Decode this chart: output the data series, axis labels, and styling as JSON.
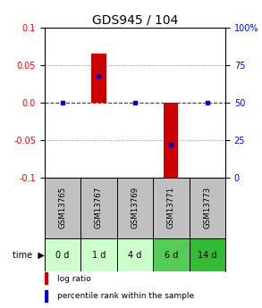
{
  "title": "GDS945 / 104",
  "samples": [
    "GSM13765",
    "GSM13767",
    "GSM13769",
    "GSM13771",
    "GSM13773"
  ],
  "time_labels": [
    "0 d",
    "1 d",
    "4 d",
    "6 d",
    "14 d"
  ],
  "log_ratios": [
    0.0,
    0.065,
    0.0,
    -0.102,
    0.0
  ],
  "percentile_ranks": [
    0.5,
    0.68,
    0.5,
    0.22,
    0.5
  ],
  "ylim": [
    -0.1,
    0.1
  ],
  "yticks_left": [
    -0.1,
    -0.05,
    0.0,
    0.05,
    0.1
  ],
  "yticks_right": [
    0,
    25,
    50,
    75,
    100
  ],
  "bar_color": "#cc0000",
  "dot_color": "#0000cc",
  "zero_line_color": "#cc0000",
  "grid_color": "#000000",
  "sample_bg_color": "#c0c0c0",
  "time_bg_colors": [
    "#ccffcc",
    "#ccffcc",
    "#ccffcc",
    "#55cc55",
    "#33bb33"
  ],
  "legend_bar_label": "log ratio",
  "legend_dot_label": "percentile rank within the sample",
  "bar_width": 0.4,
  "title_fontsize": 10,
  "tick_fontsize": 7,
  "label_fontsize": 7
}
